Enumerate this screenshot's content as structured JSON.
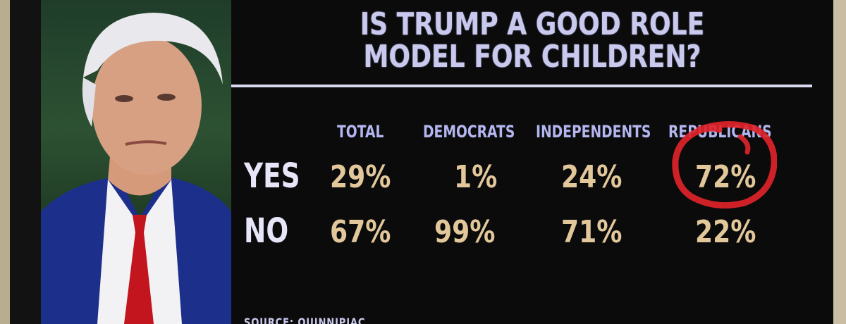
{
  "title_line1": "IS TRUMP A GOOD ROLE",
  "title_line2": "MODEL FOR CHILDREN?",
  "columns": [
    "TOTAL",
    "DEMOCRATS",
    "INDEPENDENTS",
    "REPUBLICANS"
  ],
  "rows": [
    {
      "label": "YES",
      "values": [
        "29%",
        "1%",
        "24%",
        "72%"
      ]
    },
    {
      "label": "NO",
      "values": [
        "67%",
        "99%",
        "71%",
        "22%"
      ]
    }
  ],
  "source": "SOURCE: QUINNIPIAC",
  "colors": {
    "title": "#c9c9ee",
    "header": "#b4b6ef",
    "value": "#e2c79b",
    "annotation": "#e0242a"
  },
  "annotation": "red-circle-around-72-percent"
}
